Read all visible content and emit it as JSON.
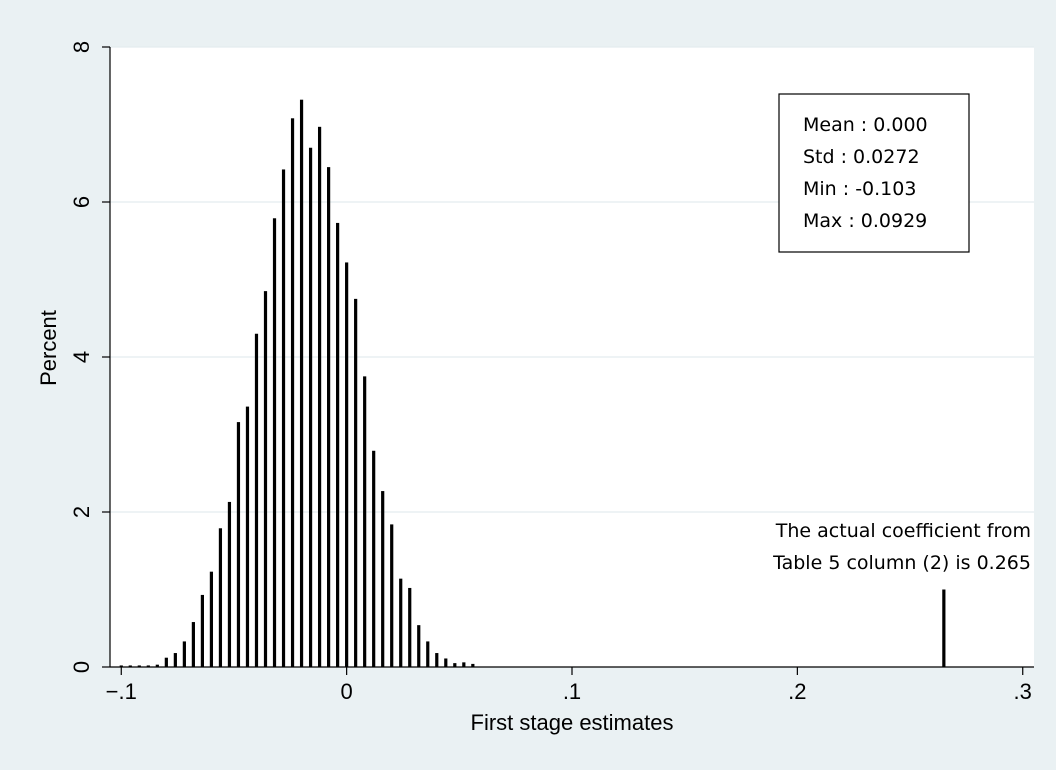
{
  "chart_data": {
    "type": "bar",
    "title": "",
    "xlabel": "First stage estimates",
    "ylabel": "Percent",
    "xlim": [
      -0.105,
      0.305
    ],
    "ylim": [
      0,
      8
    ],
    "xticks": [
      {
        "value": -0.1,
        "label": "−.1"
      },
      {
        "value": 0,
        "label": "0"
      },
      {
        "value": 0.1,
        "label": ".1"
      },
      {
        "value": 0.2,
        "label": ".2"
      },
      {
        "value": 0.3,
        "label": ".3"
      }
    ],
    "yticks": [
      {
        "value": 0,
        "label": "0"
      },
      {
        "value": 2,
        "label": "2"
      },
      {
        "value": 4,
        "label": "4"
      },
      {
        "value": 6,
        "label": "6"
      },
      {
        "value": 8,
        "label": "8"
      }
    ],
    "grid": true,
    "series": [
      {
        "x": [
          -0.1,
          -0.096,
          -0.092,
          -0.088,
          -0.084,
          -0.08,
          -0.076,
          -0.072,
          -0.068,
          -0.064,
          -0.06,
          -0.056,
          -0.052,
          -0.048,
          -0.044,
          -0.04,
          -0.036,
          -0.032,
          -0.028,
          -0.024,
          -0.02,
          -0.016,
          -0.012,
          -0.008,
          -0.004,
          0.0,
          0.004,
          0.008,
          0.012,
          0.016,
          0.02,
          0.024,
          0.028,
          0.032,
          0.036,
          0.04,
          0.044,
          0.048,
          0.052,
          0.056,
          0.06,
          0.064,
          0.068,
          0.072,
          0.076,
          0.08,
          0.084,
          0.088,
          0.092,
          0.265
        ],
        "values": [
          0.02,
          0.02,
          0.02,
          0.02,
          0.03,
          0.12,
          0.18,
          0.33,
          0.58,
          0.93,
          1.23,
          1.79,
          2.13,
          3.16,
          3.36,
          4.3,
          4.85,
          5.79,
          6.42,
          7.08,
          7.32,
          6.7,
          6.97,
          6.45,
          5.73,
          5.22,
          4.75,
          3.75,
          2.79,
          2.27,
          1.84,
          1.14,
          1.02,
          0.54,
          0.33,
          0.18,
          0.11,
          0.05,
          0.06,
          0.04,
          0.0,
          0.0,
          0.0,
          0.0,
          0.0,
          0.0,
          0.0,
          0.0,
          0.0,
          1.0
        ]
      }
    ],
    "annotations": {
      "stats": [
        "Mean : 0.000",
        "Std : 0.0272",
        "Min : -0.103",
        "Max : 0.0929"
      ],
      "note": [
        "The actual coefficient from",
        "Table 5 column (2) is 0.265"
      ]
    }
  },
  "colors": {
    "background": "#eaf1f3",
    "plot_area": "#ffffff",
    "bars": "#000000",
    "grid": "#e3ecef"
  }
}
